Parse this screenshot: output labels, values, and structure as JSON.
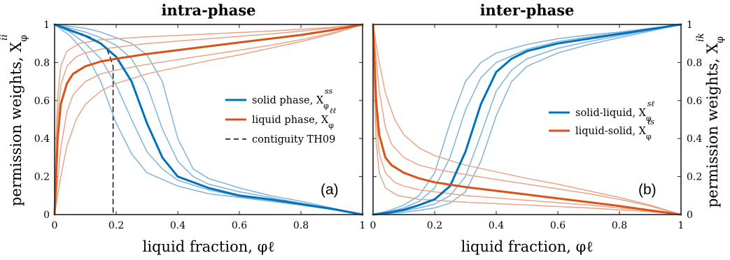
{
  "colors": {
    "blue": "#0072BD",
    "orange": "#D95319",
    "blue_light": "#7FB3DC",
    "orange_light": "#EAA487",
    "black": "#000000"
  },
  "chart_data": [
    {
      "type": "line",
      "title": "intra-phase",
      "xlabel": "liquid fraction, φℓ",
      "ylabel": "permission weights, X",
      "ylabel_sym": "φ",
      "ylabel_sup": "ii",
      "panel_label": "(a)",
      "xlim": [
        0,
        1
      ],
      "ylim": [
        0,
        1
      ],
      "xticks": [
        "0",
        "0.2",
        "0.4",
        "0.6",
        "0.8",
        "1"
      ],
      "yticks": [
        "0",
        "0.2",
        "0.4",
        "0.6",
        "0.8",
        "1"
      ],
      "legend_position": "center-right",
      "legend": [
        {
          "text": "solid phase, X",
          "sub": "φ",
          "sup": "ss",
          "style": "solid",
          "color": "#0072BD"
        },
        {
          "text": "liquid phase, X",
          "sub": "φ",
          "sup": "ℓℓ",
          "style": "solid",
          "color": "#D95319"
        },
        {
          "text": "contiguity TH09",
          "style": "dashed",
          "color": "#000000"
        }
      ],
      "series": [
        {
          "name": "solid phase",
          "color": "#0072BD",
          "width": 3,
          "x": [
            0,
            0.05,
            0.1,
            0.15,
            0.2,
            0.25,
            0.3,
            0.35,
            0.4,
            0.5,
            0.6,
            0.7,
            0.8,
            0.9,
            1
          ],
          "y": [
            1,
            0.97,
            0.94,
            0.9,
            0.83,
            0.7,
            0.48,
            0.3,
            0.2,
            0.14,
            0.1,
            0.08,
            0.055,
            0.03,
            0
          ]
        },
        {
          "name": "solid phase (variant 1)",
          "color": "#7FB3DC",
          "width": 1.5,
          "x": [
            0,
            0.05,
            0.1,
            0.15,
            0.2,
            0.25,
            0.3,
            0.4,
            0.5,
            0.6,
            0.7,
            0.8,
            0.9,
            1
          ],
          "y": [
            1,
            0.94,
            0.85,
            0.7,
            0.48,
            0.32,
            0.22,
            0.15,
            0.11,
            0.09,
            0.07,
            0.05,
            0.027,
            0
          ]
        },
        {
          "name": "solid phase (variant 2)",
          "color": "#7FB3DC",
          "width": 1.5,
          "x": [
            0,
            0.05,
            0.1,
            0.15,
            0.2,
            0.25,
            0.3,
            0.35,
            0.4,
            0.5,
            0.6,
            0.7,
            0.8,
            0.9,
            1
          ],
          "y": [
            1,
            0.96,
            0.9,
            0.82,
            0.68,
            0.5,
            0.33,
            0.24,
            0.18,
            0.13,
            0.095,
            0.075,
            0.05,
            0.028,
            0
          ]
        },
        {
          "name": "solid phase (variant 3)",
          "color": "#7FB3DC",
          "width": 1.5,
          "x": [
            0,
            0.05,
            0.1,
            0.15,
            0.2,
            0.25,
            0.3,
            0.35,
            0.4,
            0.45,
            0.5,
            0.6,
            0.7,
            0.8,
            0.9,
            1
          ],
          "y": [
            1,
            0.98,
            0.96,
            0.93,
            0.89,
            0.82,
            0.68,
            0.45,
            0.28,
            0.2,
            0.16,
            0.12,
            0.09,
            0.06,
            0.032,
            0
          ]
        },
        {
          "name": "solid phase (variant 4)",
          "color": "#7FB3DC",
          "width": 1.5,
          "x": [
            0,
            0.05,
            0.1,
            0.15,
            0.2,
            0.25,
            0.3,
            0.35,
            0.4,
            0.45,
            0.5,
            0.6,
            0.7,
            0.8,
            0.9,
            1
          ],
          "y": [
            1,
            0.99,
            0.98,
            0.96,
            0.93,
            0.9,
            0.84,
            0.7,
            0.4,
            0.24,
            0.19,
            0.14,
            0.1,
            0.07,
            0.035,
            0
          ]
        },
        {
          "name": "liquid phase",
          "color": "#D95319",
          "width": 3,
          "x": [
            0,
            0.01,
            0.02,
            0.04,
            0.06,
            0.1,
            0.15,
            0.2,
            0.3,
            0.4,
            0.5,
            0.6,
            0.7,
            0.8,
            0.9,
            1
          ],
          "y": [
            0,
            0.4,
            0.58,
            0.69,
            0.74,
            0.78,
            0.805,
            0.82,
            0.845,
            0.865,
            0.885,
            0.905,
            0.925,
            0.945,
            0.97,
            1
          ]
        },
        {
          "name": "liquid phase (variant 1)",
          "color": "#EAA487",
          "width": 1.5,
          "x": [
            0,
            0.005,
            0.01,
            0.02,
            0.04,
            0.08,
            0.15,
            0.3,
            0.5,
            0.7,
            0.9,
            1
          ],
          "y": [
            0,
            0.4,
            0.62,
            0.78,
            0.86,
            0.9,
            0.92,
            0.935,
            0.95,
            0.965,
            0.985,
            1
          ]
        },
        {
          "name": "liquid phase (variant 2)",
          "color": "#EAA487",
          "width": 1.5,
          "x": [
            0,
            0.01,
            0.02,
            0.04,
            0.07,
            0.1,
            0.15,
            0.2,
            0.3,
            0.5,
            0.7,
            0.9,
            1
          ],
          "y": [
            0,
            0.5,
            0.68,
            0.78,
            0.83,
            0.85,
            0.87,
            0.88,
            0.9,
            0.925,
            0.95,
            0.98,
            1
          ]
        },
        {
          "name": "liquid phase (variant 3)",
          "color": "#EAA487",
          "width": 1.5,
          "x": [
            0,
            0.02,
            0.04,
            0.06,
            0.1,
            0.15,
            0.2,
            0.3,
            0.4,
            0.5,
            0.6,
            0.7,
            0.8,
            0.9,
            1
          ],
          "y": [
            0,
            0.35,
            0.54,
            0.63,
            0.7,
            0.74,
            0.76,
            0.79,
            0.815,
            0.84,
            0.865,
            0.89,
            0.92,
            0.955,
            1
          ]
        },
        {
          "name": "liquid phase (variant 4)",
          "color": "#EAA487",
          "width": 1.5,
          "x": [
            0,
            0.02,
            0.04,
            0.07,
            0.1,
            0.15,
            0.2,
            0.3,
            0.4,
            0.5,
            0.6,
            0.7,
            0.8,
            0.9,
            1
          ],
          "y": [
            0,
            0.2,
            0.36,
            0.5,
            0.58,
            0.65,
            0.69,
            0.74,
            0.775,
            0.81,
            0.84,
            0.875,
            0.91,
            0.95,
            1
          ]
        },
        {
          "name": "contiguity TH09",
          "color": "#000000",
          "width": 1.4,
          "dash": "7,5",
          "x": [
            0,
            0.03,
            0.06,
            0.09,
            0.12,
            0.15,
            0.17,
            0.18,
            0.19,
            0.19
          ],
          "y": [
            1,
            0.98,
            0.96,
            0.95,
            0.93,
            0.9,
            0.87,
            0.83,
            0.78,
            0
          ]
        }
      ]
    },
    {
      "type": "line",
      "title": "inter-phase",
      "xlabel": "liquid fraction, φℓ",
      "ylabel": "permission weights, X",
      "ylabel_sym": "φ",
      "ylabel_sup": "ik",
      "panel_label": "(b)",
      "xlim": [
        0,
        1
      ],
      "ylim": [
        0,
        1
      ],
      "xticks": [
        "0",
        "0.2",
        "0.4",
        "0.6",
        "0.8",
        "1"
      ],
      "yticks": [
        "0",
        "0.2",
        "0.4",
        "0.6",
        "0.8",
        "1"
      ],
      "legend_position": "center-right",
      "legend": [
        {
          "text": "solid-liquid, X",
          "sub": "φ",
          "sup": "sℓ",
          "style": "solid",
          "color": "#0072BD"
        },
        {
          "text": "liquid-solid, X",
          "sub": "φ",
          "sup": "ℓs",
          "style": "solid",
          "color": "#D95319"
        }
      ],
      "series": [
        {
          "name": "solid-liquid",
          "color": "#0072BD",
          "width": 3,
          "x": [
            0,
            0.05,
            0.1,
            0.15,
            0.2,
            0.25,
            0.3,
            0.35,
            0.4,
            0.45,
            0.5,
            0.6,
            0.7,
            0.8,
            0.9,
            1
          ],
          "y": [
            0,
            0.01,
            0.025,
            0.05,
            0.08,
            0.15,
            0.33,
            0.58,
            0.75,
            0.82,
            0.86,
            0.9,
            0.925,
            0.95,
            0.975,
            1
          ]
        },
        {
          "name": "solid-liquid (variant 1)",
          "color": "#7FB3DC",
          "width": 1.5,
          "x": [
            0,
            0.05,
            0.1,
            0.15,
            0.2,
            0.25,
            0.3,
            0.35,
            0.4,
            0.5,
            0.6,
            0.7,
            0.8,
            0.9,
            1
          ],
          "y": [
            0,
            0.02,
            0.05,
            0.1,
            0.22,
            0.48,
            0.7,
            0.8,
            0.85,
            0.895,
            0.925,
            0.945,
            0.96,
            0.98,
            1
          ]
        },
        {
          "name": "solid-liquid (variant 2)",
          "color": "#7FB3DC",
          "width": 1.5,
          "x": [
            0,
            0.05,
            0.1,
            0.15,
            0.2,
            0.25,
            0.3,
            0.35,
            0.4,
            0.5,
            0.6,
            0.7,
            0.8,
            0.9,
            1
          ],
          "y": [
            0,
            0.015,
            0.035,
            0.07,
            0.14,
            0.3,
            0.55,
            0.72,
            0.8,
            0.87,
            0.91,
            0.935,
            0.955,
            0.978,
            1
          ]
        },
        {
          "name": "solid-liquid (variant 3)",
          "color": "#7FB3DC",
          "width": 1.5,
          "x": [
            0,
            0.05,
            0.1,
            0.15,
            0.2,
            0.25,
            0.3,
            0.35,
            0.4,
            0.45,
            0.5,
            0.6,
            0.7,
            0.8,
            0.9,
            1
          ],
          "y": [
            0,
            0.008,
            0.02,
            0.035,
            0.055,
            0.1,
            0.2,
            0.42,
            0.65,
            0.76,
            0.82,
            0.875,
            0.91,
            0.94,
            0.97,
            1
          ]
        },
        {
          "name": "solid-liquid (variant 4)",
          "color": "#7FB3DC",
          "width": 1.5,
          "x": [
            0,
            0.05,
            0.1,
            0.15,
            0.2,
            0.25,
            0.3,
            0.35,
            0.4,
            0.45,
            0.5,
            0.6,
            0.7,
            0.8,
            0.9,
            1
          ],
          "y": [
            0,
            0.005,
            0.012,
            0.022,
            0.035,
            0.06,
            0.12,
            0.28,
            0.52,
            0.7,
            0.78,
            0.85,
            0.895,
            0.93,
            0.965,
            1
          ]
        },
        {
          "name": "liquid-solid",
          "color": "#D95319",
          "width": 3,
          "x": [
            0,
            0.01,
            0.02,
            0.04,
            0.06,
            0.1,
            0.15,
            0.2,
            0.3,
            0.4,
            0.5,
            0.6,
            0.7,
            0.8,
            0.9,
            1
          ],
          "y": [
            1,
            0.6,
            0.42,
            0.3,
            0.26,
            0.22,
            0.19,
            0.17,
            0.145,
            0.125,
            0.105,
            0.085,
            0.065,
            0.045,
            0.022,
            0
          ]
        },
        {
          "name": "liquid-solid (variant 1)",
          "color": "#EAA487",
          "width": 1.5,
          "x": [
            0,
            0.005,
            0.01,
            0.02,
            0.04,
            0.08,
            0.15,
            0.3,
            0.5,
            0.7,
            0.9,
            1
          ],
          "y": [
            1,
            0.6,
            0.38,
            0.22,
            0.14,
            0.1,
            0.08,
            0.065,
            0.05,
            0.035,
            0.015,
            0
          ]
        },
        {
          "name": "liquid-solid (variant 2)",
          "color": "#EAA487",
          "width": 1.5,
          "x": [
            0,
            0.01,
            0.02,
            0.04,
            0.07,
            0.1,
            0.15,
            0.2,
            0.3,
            0.5,
            0.7,
            0.9,
            1
          ],
          "y": [
            1,
            0.5,
            0.32,
            0.22,
            0.17,
            0.15,
            0.13,
            0.12,
            0.1,
            0.075,
            0.05,
            0.02,
            0
          ]
        },
        {
          "name": "liquid-solid (variant 3)",
          "color": "#EAA487",
          "width": 1.5,
          "x": [
            0,
            0.02,
            0.04,
            0.06,
            0.1,
            0.15,
            0.2,
            0.3,
            0.4,
            0.5,
            0.6,
            0.7,
            0.8,
            0.9,
            1
          ],
          "y": [
            1,
            0.65,
            0.46,
            0.37,
            0.3,
            0.26,
            0.24,
            0.21,
            0.185,
            0.16,
            0.135,
            0.11,
            0.08,
            0.045,
            0
          ]
        },
        {
          "name": "liquid-solid (variant 4)",
          "color": "#EAA487",
          "width": 1.5,
          "x": [
            0,
            0.02,
            0.04,
            0.07,
            0.1,
            0.15,
            0.2,
            0.3,
            0.4,
            0.5,
            0.6,
            0.7,
            0.8,
            0.9,
            1
          ],
          "y": [
            1,
            0.8,
            0.64,
            0.5,
            0.42,
            0.35,
            0.31,
            0.26,
            0.225,
            0.19,
            0.16,
            0.125,
            0.09,
            0.05,
            0
          ]
        }
      ]
    }
  ]
}
